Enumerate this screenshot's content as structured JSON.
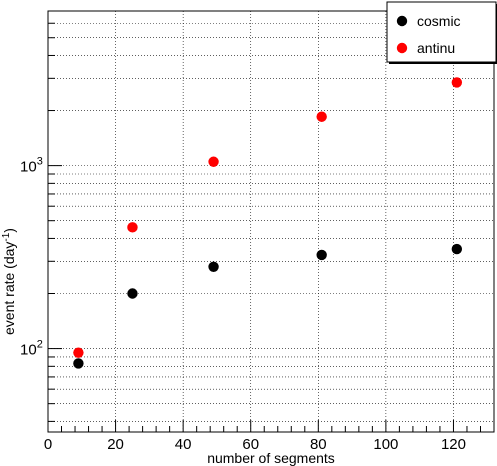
{
  "chart_data": {
    "type": "scatter",
    "xlabel": "number of segments",
    "ylabel": "event rate (day",
    "ylabel_sup": "-1",
    "ylabel_close": ")",
    "xlim": [
      0,
      132
    ],
    "ylim": [
      35,
      7000
    ],
    "ylog": true,
    "grid": true,
    "legend_position": "top-right",
    "x_ticks": [
      0,
      20,
      40,
      60,
      80,
      100,
      120
    ],
    "x_tick_labels": [
      "0",
      "20",
      "40",
      "60",
      "80",
      "100",
      "120"
    ],
    "y_ticks": [
      {
        "value": 100,
        "base": "10",
        "exp": "2"
      },
      {
        "value": 1000,
        "base": "10",
        "exp": "3"
      }
    ],
    "series": [
      {
        "name": "cosmic",
        "color": "#000000",
        "x": [
          9,
          25,
          49,
          81,
          121
        ],
        "y": [
          83,
          200,
          280,
          325,
          350
        ]
      },
      {
        "name": "antinu",
        "color": "#ff0000",
        "x": [
          9,
          25,
          49,
          81,
          121
        ],
        "y": [
          95,
          460,
          1050,
          1850,
          2850
        ]
      }
    ]
  }
}
